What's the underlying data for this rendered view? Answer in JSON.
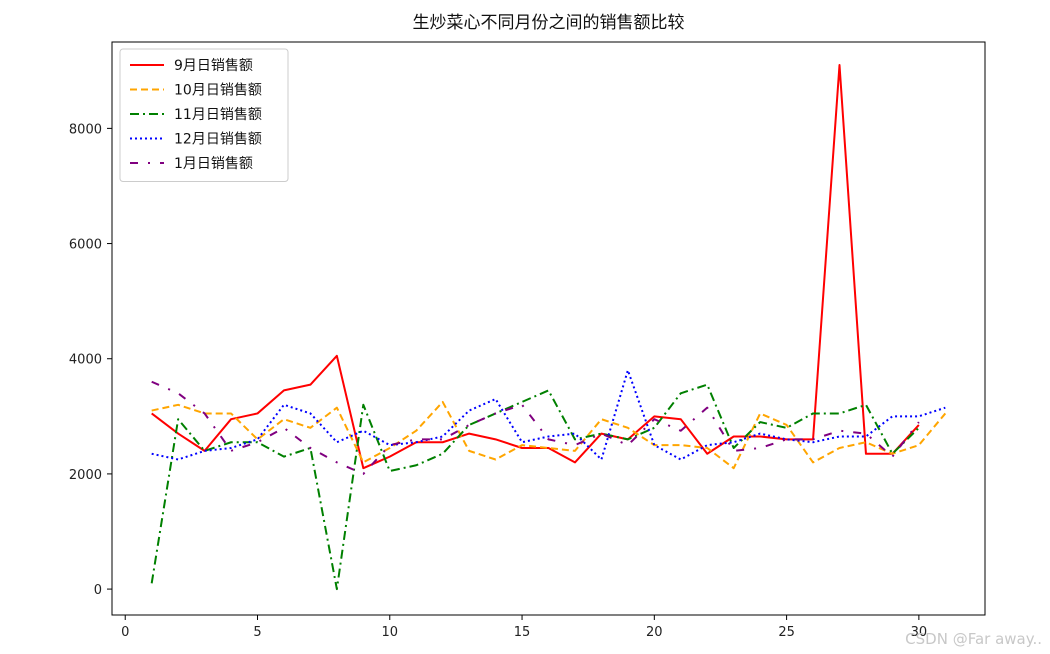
{
  "chart_data": {
    "type": "line",
    "title": "生炒菜心不同月份之间的销售额比较",
    "xlabel": "",
    "ylabel": "",
    "xlim": [
      -0.5,
      32.5
    ],
    "ylim": [
      -450,
      9500
    ],
    "xticks": [
      0,
      5,
      10,
      15,
      20,
      25,
      30
    ],
    "yticks": [
      0,
      2000,
      4000,
      6000,
      8000
    ],
    "grid": false,
    "legend": "top-left",
    "series": [
      {
        "name": "9月日销售额",
        "color": "#ff0000",
        "style": "solid",
        "x": [
          1,
          2,
          3,
          4,
          5,
          6,
          7,
          8,
          9,
          10,
          11,
          12,
          13,
          14,
          15,
          16,
          17,
          18,
          19,
          20,
          21,
          22,
          23,
          24,
          25,
          26,
          27,
          28,
          29,
          30
        ],
        "values": [
          3050,
          2700,
          2400,
          2950,
          3050,
          3450,
          3550,
          4050,
          2100,
          2300,
          2550,
          2550,
          2700,
          2600,
          2450,
          2450,
          2200,
          2700,
          2600,
          3000,
          2950,
          2350,
          2650,
          2650,
          2600,
          2600,
          9100,
          2350,
          2350,
          2850
        ]
      },
      {
        "name": "10月日销售额",
        "color": "#ffa500",
        "style": "dashed",
        "x": [
          1,
          2,
          3,
          4,
          5,
          6,
          7,
          8,
          9,
          10,
          11,
          12,
          13,
          14,
          15,
          16,
          17,
          18,
          19,
          20,
          21,
          22,
          23,
          24,
          25,
          26,
          27,
          28,
          29,
          30,
          31
        ],
        "values": [
          3100,
          3200,
          3050,
          3050,
          2600,
          2950,
          2800,
          3150,
          2200,
          2450,
          2750,
          3250,
          2400,
          2250,
          2500,
          2450,
          2400,
          2950,
          2800,
          2500,
          2500,
          2450,
          2100,
          3050,
          2850,
          2200,
          2450,
          2550,
          2350,
          2500,
          3050
        ]
      },
      {
        "name": "11月日销售额",
        "color": "#008000",
        "style": "dashdot",
        "x": [
          1,
          2,
          3,
          4,
          5,
          6,
          7,
          8,
          9,
          10,
          11,
          12,
          13,
          14,
          15,
          16,
          17,
          18,
          19,
          20,
          21,
          22,
          23,
          24,
          25,
          26,
          27,
          28,
          29,
          30
        ],
        "values": [
          100,
          2950,
          2400,
          2550,
          2550,
          2300,
          2450,
          0,
          3200,
          2050,
          2150,
          2350,
          2850,
          3050,
          3250,
          3450,
          2600,
          2700,
          2600,
          2800,
          3400,
          3550,
          2450,
          2900,
          2800,
          3050,
          3050,
          3200,
          2350,
          2800
        ]
      },
      {
        "name": "12月日销售额",
        "color": "#0000ff",
        "style": "dotted",
        "x": [
          1,
          2,
          3,
          4,
          5,
          6,
          7,
          8,
          9,
          10,
          11,
          12,
          13,
          14,
          15,
          16,
          17,
          18,
          19,
          20,
          21,
          22,
          23,
          24,
          25,
          26,
          27,
          28,
          29,
          30,
          31
        ],
        "values": [
          2350,
          2250,
          2400,
          2450,
          2600,
          3200,
          3050,
          2550,
          2750,
          2500,
          2550,
          2650,
          3100,
          3300,
          2550,
          2650,
          2700,
          2250,
          3800,
          2500,
          2250,
          2500,
          2550,
          2700,
          2600,
          2550,
          2650,
          2650,
          3000,
          3000,
          3150
        ]
      },
      {
        "name": "1月日销售额",
        "color": "#800080",
        "style": "loose-dashdot",
        "x": [
          1,
          2,
          3,
          4,
          5,
          6,
          7,
          8,
          9,
          10,
          11,
          12,
          13,
          14,
          15,
          16,
          17,
          18,
          19,
          20,
          21,
          22,
          23,
          24,
          25,
          26,
          27,
          28,
          29,
          30
        ],
        "values": [
          3600,
          3400,
          3050,
          2400,
          2550,
          2800,
          2450,
          2200,
          2000,
          2500,
          2600,
          2600,
          2850,
          3050,
          3200,
          2600,
          2500,
          2700,
          2500,
          2950,
          2750,
          3150,
          2400,
          2450,
          2600,
          2600,
          2750,
          2700,
          2300,
          2900
        ]
      }
    ]
  },
  "watermark": "CSDN @Far away.."
}
